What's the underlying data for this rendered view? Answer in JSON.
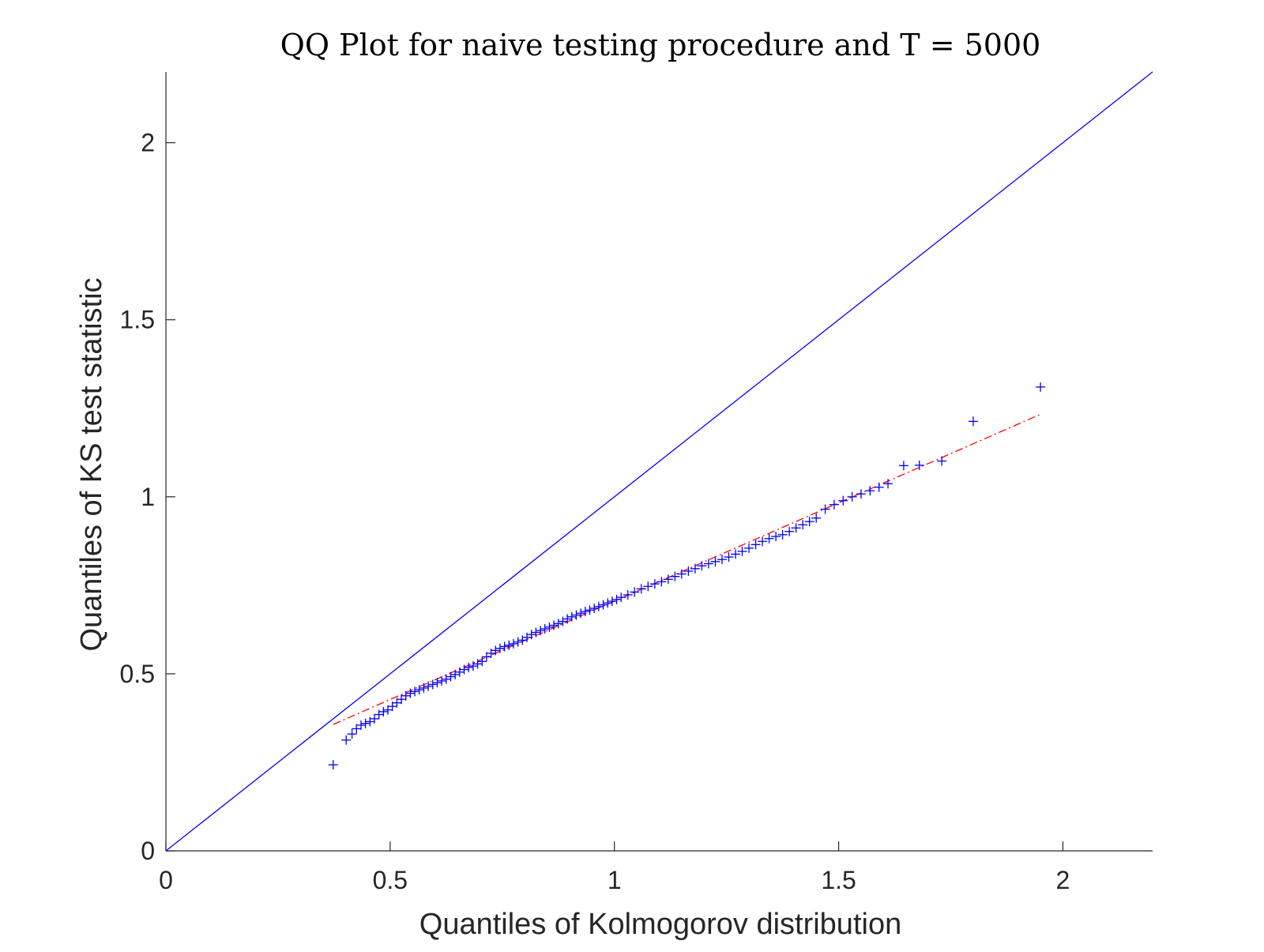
{
  "chart_data": {
    "type": "scatter",
    "title": "QQ Plot for naive testing procedure and T = 5000",
    "xlabel": "Quantiles of Kolmogorov distribution",
    "ylabel": "Quantiles of KS test statistic",
    "xlim": [
      0,
      2.2
    ],
    "ylim": [
      0,
      2.2
    ],
    "xticks": [
      0,
      0.5,
      1,
      1.5,
      2
    ],
    "xtick_labels": [
      "0",
      "0.5",
      "1",
      "1.5",
      "2"
    ],
    "yticks": [
      0,
      0.5,
      1,
      1.5,
      2
    ],
    "ytick_labels": [
      "0",
      "0.5",
      "1",
      "1.5",
      "2"
    ],
    "grid": false,
    "legend": "none",
    "reference_line": {
      "style": "solid",
      "color": "#0000ff",
      "x": [
        0,
        2.2
      ],
      "y": [
        0,
        2.2
      ]
    },
    "fit_line": {
      "style": "dash-dot",
      "color": "#ff0000",
      "x": [
        0.373,
        1.95
      ],
      "y": [
        0.357,
        1.233
      ]
    },
    "series": [
      {
        "marker": "+",
        "color": "#0000ff",
        "points": [
          [
            0.373,
            0.243
          ],
          [
            0.402,
            0.313
          ],
          [
            0.415,
            0.33
          ],
          [
            0.425,
            0.345
          ],
          [
            0.435,
            0.355
          ],
          [
            0.445,
            0.36
          ],
          [
            0.455,
            0.365
          ],
          [
            0.465,
            0.373
          ],
          [
            0.475,
            0.385
          ],
          [
            0.485,
            0.393
          ],
          [
            0.495,
            0.398
          ],
          [
            0.505,
            0.408
          ],
          [
            0.515,
            0.418
          ],
          [
            0.525,
            0.428
          ],
          [
            0.535,
            0.438
          ],
          [
            0.545,
            0.445
          ],
          [
            0.555,
            0.45
          ],
          [
            0.565,
            0.455
          ],
          [
            0.575,
            0.46
          ],
          [
            0.585,
            0.465
          ],
          [
            0.595,
            0.47
          ],
          [
            0.605,
            0.475
          ],
          [
            0.615,
            0.48
          ],
          [
            0.625,
            0.485
          ],
          [
            0.635,
            0.492
          ],
          [
            0.645,
            0.498
          ],
          [
            0.655,
            0.505
          ],
          [
            0.665,
            0.512
          ],
          [
            0.675,
            0.518
          ],
          [
            0.685,
            0.522
          ],
          [
            0.695,
            0.528
          ],
          [
            0.705,
            0.535
          ],
          [
            0.715,
            0.548
          ],
          [
            0.725,
            0.558
          ],
          [
            0.735,
            0.566
          ],
          [
            0.745,
            0.572
          ],
          [
            0.755,
            0.577
          ],
          [
            0.765,
            0.581
          ],
          [
            0.775,
            0.585
          ],
          [
            0.785,
            0.59
          ],
          [
            0.795,
            0.595
          ],
          [
            0.805,
            0.603
          ],
          [
            0.815,
            0.611
          ],
          [
            0.825,
            0.617
          ],
          [
            0.835,
            0.622
          ],
          [
            0.845,
            0.627
          ],
          [
            0.855,
            0.632
          ],
          [
            0.865,
            0.637
          ],
          [
            0.875,
            0.642
          ],
          [
            0.885,
            0.648
          ],
          [
            0.895,
            0.655
          ],
          [
            0.905,
            0.661
          ],
          [
            0.915,
            0.666
          ],
          [
            0.925,
            0.671
          ],
          [
            0.935,
            0.676
          ],
          [
            0.945,
            0.68
          ],
          [
            0.955,
            0.685
          ],
          [
            0.965,
            0.69
          ],
          [
            0.975,
            0.695
          ],
          [
            0.985,
            0.7
          ],
          [
            0.995,
            0.705
          ],
          [
            1.005,
            0.71
          ],
          [
            1.015,
            0.716
          ],
          [
            1.03,
            0.723
          ],
          [
            1.045,
            0.731
          ],
          [
            1.06,
            0.74
          ],
          [
            1.075,
            0.747
          ],
          [
            1.09,
            0.754
          ],
          [
            1.105,
            0.76
          ],
          [
            1.12,
            0.767
          ],
          [
            1.135,
            0.775
          ],
          [
            1.15,
            0.782
          ],
          [
            1.165,
            0.79
          ],
          [
            1.18,
            0.797
          ],
          [
            1.195,
            0.805
          ],
          [
            1.21,
            0.811
          ],
          [
            1.225,
            0.817
          ],
          [
            1.24,
            0.823
          ],
          [
            1.255,
            0.83
          ],
          [
            1.27,
            0.838
          ],
          [
            1.285,
            0.846
          ],
          [
            1.3,
            0.855
          ],
          [
            1.315,
            0.865
          ],
          [
            1.33,
            0.874
          ],
          [
            1.345,
            0.882
          ],
          [
            1.36,
            0.888
          ],
          [
            1.375,
            0.893
          ],
          [
            1.39,
            0.902
          ],
          [
            1.405,
            0.912
          ],
          [
            1.42,
            0.921
          ],
          [
            1.435,
            0.93
          ],
          [
            1.45,
            0.94
          ],
          [
            1.47,
            0.965
          ],
          [
            1.49,
            0.978
          ],
          [
            1.51,
            0.989
          ],
          [
            1.53,
            1.0
          ],
          [
            1.55,
            1.008
          ],
          [
            1.57,
            1.017
          ],
          [
            1.59,
            1.027
          ],
          [
            1.61,
            1.037
          ],
          [
            1.645,
            1.088
          ],
          [
            1.68,
            1.089
          ],
          [
            1.73,
            1.101
          ],
          [
            1.8,
            1.213
          ],
          [
            1.95,
            1.31
          ]
        ]
      }
    ]
  }
}
